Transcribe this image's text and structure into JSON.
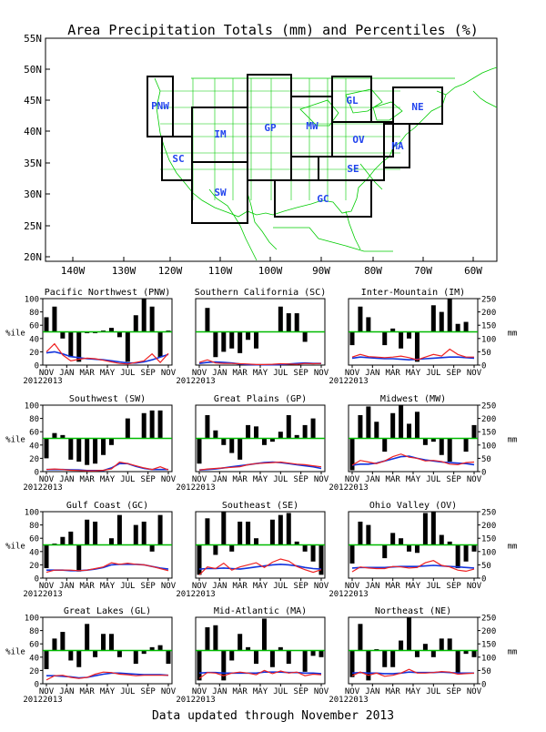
{
  "title": "Area Precipitation Totals (mm) and Percentiles (%)",
  "footer": "Data updated through November 2013",
  "colors": {
    "state_lines": "#00cc00",
    "region_labels": "#2244ee",
    "bars": "#000000",
    "percentile_line": "#ee2222",
    "normal_line": "#1133dd",
    "median_line": "#00bb00"
  },
  "map": {
    "lat_ticks": [
      "55N",
      "50N",
      "45N",
      "40N",
      "35N",
      "30N",
      "25N",
      "20N"
    ],
    "lon_ticks": [
      "140W",
      "130W",
      "120W",
      "110W",
      "100W",
      "90W",
      "80W",
      "70W",
      "60W"
    ],
    "regions": [
      "PNW",
      "SC",
      "IM",
      "SW",
      "GP",
      "MW",
      "GL",
      "OV",
      "SE",
      "GC",
      "NE",
      "MA"
    ]
  },
  "chart_data": [
    {
      "type": "bar+line",
      "title": "Pacific Northwest (PNW)",
      "x": [
        "NOV",
        "JAN",
        "MAR",
        "MAY",
        "JUL",
        "SEP",
        "NOV"
      ],
      "year_labels": [
        "2012",
        "2013"
      ],
      "y_left_label": "%ile",
      "y_left_ticks": [
        0,
        20,
        40,
        60,
        80,
        100
      ],
      "y_right_label": "",
      "y_right_ticks": [],
      "bars_percentile": [
        72,
        88,
        40,
        12,
        5,
        48,
        48,
        52,
        56,
        42,
        5,
        75,
        100,
        88,
        12,
        52
      ],
      "percentile_mm": [
        50,
        80,
        38,
        16,
        22,
        26,
        24,
        18,
        12,
        6,
        4,
        10,
        16,
        42,
        10,
        44
      ],
      "normal_mm": [
        46,
        50,
        42,
        32,
        28,
        24,
        22,
        20,
        16,
        12,
        8,
        8,
        12,
        20,
        30,
        40
      ]
    },
    {
      "type": "bar+line",
      "title": "Southern California (SC)",
      "x": [
        "NOV",
        "JAN",
        "MAR",
        "MAY",
        "JUL",
        "SEP",
        "NOV"
      ],
      "year_labels": [
        "2012",
        "2013"
      ],
      "y_left_label": "",
      "y_left_ticks": [],
      "y_right_label": "",
      "y_right_ticks": [],
      "bars_percentile": [
        50,
        86,
        12,
        20,
        25,
        18,
        38,
        25,
        50,
        50,
        88,
        78,
        78,
        35,
        50,
        50
      ],
      "percentile_mm": [
        10,
        20,
        8,
        6,
        6,
        5,
        4,
        2,
        2,
        3,
        5,
        4,
        3,
        6,
        5,
        6
      ],
      "normal_mm": [
        6,
        10,
        12,
        10,
        8,
        4,
        2,
        1,
        1,
        1,
        2,
        4,
        6,
        8,
        6,
        6
      ]
    },
    {
      "type": "bar+line",
      "title": "Inter-Mountain (IM)",
      "x": [
        "NOV",
        "JAN",
        "MAR",
        "MAY",
        "JUL",
        "SEP",
        "NOV"
      ],
      "year_labels": [
        "2012",
        "2013"
      ],
      "y_left_label": "",
      "y_left_ticks": [],
      "y_right_label": "mm",
      "y_right_ticks": [
        0,
        50,
        100,
        150,
        200,
        250
      ],
      "bars_percentile": [
        30,
        88,
        72,
        50,
        30,
        55,
        25,
        40,
        5,
        50,
        90,
        80,
        100,
        62,
        65,
        50
      ],
      "percentile_mm": [
        30,
        40,
        32,
        30,
        28,
        30,
        34,
        28,
        20,
        30,
        40,
        34,
        60,
        40,
        30,
        30
      ],
      "normal_mm": [
        26,
        30,
        28,
        26,
        24,
        24,
        22,
        20,
        22,
        24,
        26,
        28,
        30,
        30,
        28,
        26
      ]
    },
    {
      "type": "bar+line",
      "title": "Southwest (SW)",
      "x": [
        "NOV",
        "JAN",
        "MAR",
        "MAY",
        "JUL",
        "SEP",
        "NOV"
      ],
      "year_labels": [
        "2012",
        "2013"
      ],
      "y_left_label": "%ile",
      "y_left_ticks": [
        0,
        20,
        40,
        60,
        80,
        100
      ],
      "y_right_label": "",
      "y_right_ticks": [],
      "bars_percentile": [
        20,
        58,
        55,
        18,
        15,
        10,
        12,
        25,
        40,
        50,
        80,
        50,
        88,
        92,
        92,
        50
      ],
      "percentile_mm": [
        8,
        10,
        8,
        5,
        4,
        3,
        3,
        5,
        10,
        36,
        30,
        22,
        14,
        8,
        18,
        6
      ],
      "normal_mm": [
        8,
        8,
        8,
        7,
        6,
        4,
        4,
        4,
        14,
        30,
        30,
        20,
        12,
        8,
        8,
        8
      ]
    },
    {
      "type": "bar+line",
      "title": "Great Plains (GP)",
      "x": [
        "NOV",
        "JAN",
        "MAR",
        "MAY",
        "JUL",
        "SEP",
        "NOV"
      ],
      "year_labels": [
        "2012",
        "2013"
      ],
      "y_left_label": "",
      "y_left_ticks": [],
      "y_right_label": "",
      "y_right_ticks": [],
      "bars_percentile": [
        12,
        85,
        62,
        40,
        28,
        18,
        70,
        68,
        40,
        45,
        60,
        85,
        55,
        70,
        80,
        50
      ],
      "percentile_mm": [
        6,
        10,
        12,
        14,
        16,
        18,
        26,
        30,
        32,
        34,
        36,
        32,
        28,
        26,
        22,
        18
      ],
      "normal_mm": [
        6,
        8,
        10,
        14,
        18,
        22,
        26,
        30,
        34,
        36,
        34,
        30,
        26,
        22,
        18,
        12
      ]
    },
    {
      "type": "bar+line",
      "title": "Midwest (MW)",
      "x": [
        "NOV",
        "JAN",
        "MAR",
        "MAY",
        "JUL",
        "SEP",
        "NOV"
      ],
      "year_labels": [
        "2012",
        "2013"
      ],
      "y_left_label": "",
      "y_left_ticks": [],
      "y_right_label": "mm",
      "y_right_ticks": [
        0,
        50,
        100,
        150,
        200,
        250
      ],
      "bars_percentile": [
        2,
        85,
        98,
        75,
        30,
        88,
        100,
        72,
        90,
        40,
        45,
        25,
        15,
        50,
        30,
        70
      ],
      "percentile_mm": [
        24,
        42,
        36,
        30,
        40,
        56,
        66,
        54,
        50,
        40,
        42,
        38,
        28,
        26,
        34,
        36
      ],
      "normal_mm": [
        24,
        28,
        28,
        32,
        40,
        48,
        56,
        58,
        50,
        44,
        40,
        36,
        34,
        32,
        30,
        26
      ]
    },
    {
      "type": "bar+line",
      "title": "Gulf Coast (GC)",
      "x": [
        "NOV",
        "JAN",
        "MAR",
        "MAY",
        "JUL",
        "SEP",
        "NOV"
      ],
      "year_labels": [
        "2012",
        "2013"
      ],
      "y_left_label": "%ile",
      "y_left_ticks": [
        0,
        20,
        40,
        60,
        80,
        100
      ],
      "y_right_label": "",
      "y_right_ticks": [],
      "bars_percentile": [
        15,
        52,
        62,
        70,
        10,
        88,
        85,
        50,
        60,
        95,
        50,
        80,
        85,
        40,
        95,
        50
      ],
      "percentile_mm": [
        22,
        30,
        30,
        30,
        28,
        30,
        36,
        42,
        58,
        52,
        56,
        52,
        50,
        44,
        36,
        28
      ],
      "normal_mm": [
        30,
        30,
        30,
        28,
        28,
        30,
        34,
        40,
        50,
        52,
        52,
        52,
        50,
        44,
        38,
        34
      ]
    },
    {
      "type": "bar+line",
      "title": "Southeast (SE)",
      "x": [
        "NOV",
        "JAN",
        "MAR",
        "MAY",
        "JUL",
        "SEP",
        "NOV"
      ],
      "year_labels": [
        "2012",
        "2013"
      ],
      "y_left_label": "",
      "y_left_ticks": [],
      "y_right_label": "",
      "y_right_ticks": [],
      "bars_percentile": [
        5,
        90,
        35,
        100,
        40,
        85,
        85,
        60,
        50,
        88,
        95,
        98,
        55,
        40,
        25,
        5
      ],
      "percentile_mm": [
        12,
        42,
        36,
        56,
        30,
        42,
        50,
        58,
        40,
        60,
        72,
        64,
        44,
        32,
        22,
        32
      ],
      "normal_mm": [
        34,
        36,
        36,
        38,
        36,
        34,
        38,
        42,
        46,
        50,
        52,
        50,
        46,
        40,
        36,
        34
      ]
    },
    {
      "type": "bar+line",
      "title": "Ohio Valley (OV)",
      "x": [
        "NOV",
        "JAN",
        "MAR",
        "MAY",
        "JUL",
        "SEP",
        "NOV"
      ],
      "year_labels": [
        "2012",
        "2013"
      ],
      "y_left_label": "",
      "y_left_ticks": [],
      "y_right_label": "mm",
      "y_right_ticks": [
        0,
        50,
        100,
        150,
        200,
        250
      ],
      "bars_percentile": [
        22,
        85,
        80,
        50,
        30,
        68,
        60,
        40,
        38,
        98,
        100,
        65,
        55,
        15,
        25,
        40
      ],
      "percentile_mm": [
        24,
        42,
        38,
        36,
        36,
        44,
        42,
        38,
        40,
        58,
        66,
        48,
        42,
        30,
        26,
        34
      ],
      "normal_mm": [
        38,
        40,
        40,
        40,
        40,
        42,
        44,
        44,
        44,
        46,
        48,
        46,
        44,
        42,
        40,
        38
      ]
    },
    {
      "type": "bar+line",
      "title": "Great Lakes (GL)",
      "x": [
        "NOV",
        "JAN",
        "MAR",
        "MAY",
        "JUL",
        "SEP",
        "NOV"
      ],
      "year_labels": [
        "2012",
        "2013"
      ],
      "y_left_label": "%ile",
      "y_left_ticks": [
        0,
        20,
        40,
        60,
        80,
        100
      ],
      "y_right_label": "",
      "y_right_ticks": [],
      "bars_percentile": [
        22,
        68,
        78,
        35,
        25,
        90,
        40,
        75,
        75,
        40,
        50,
        30,
        45,
        55,
        58,
        30
      ],
      "percentile_mm": [
        14,
        30,
        32,
        24,
        20,
        24,
        36,
        44,
        42,
        36,
        34,
        30,
        32,
        32,
        32,
        32
      ],
      "normal_mm": [
        30,
        30,
        28,
        26,
        22,
        24,
        30,
        36,
        40,
        40,
        38,
        36,
        34,
        34,
        34,
        32
      ]
    },
    {
      "type": "bar+line",
      "title": "Mid-Atlantic (MA)",
      "x": [
        "NOV",
        "JAN",
        "MAR",
        "MAY",
        "JUL",
        "SEP",
        "NOV"
      ],
      "year_labels": [
        "2012",
        "2013"
      ],
      "y_left_label": "",
      "y_left_ticks": [],
      "y_right_label": "",
      "y_right_ticks": [],
      "bars_percentile": [
        5,
        85,
        88,
        5,
        35,
        75,
        55,
        30,
        98,
        25,
        55,
        30,
        50,
        18,
        42,
        40
      ],
      "percentile_mm": [
        20,
        42,
        40,
        30,
        40,
        44,
        40,
        34,
        50,
        38,
        48,
        40,
        44,
        30,
        36,
        34
      ],
      "normal_mm": [
        40,
        42,
        42,
        40,
        40,
        40,
        40,
        40,
        44,
        44,
        44,
        42,
        42,
        40,
        40,
        38
      ]
    },
    {
      "type": "bar+line",
      "title": "Northeast (NE)",
      "x": [
        "NOV",
        "JAN",
        "MAR",
        "MAY",
        "JUL",
        "SEP",
        "NOV"
      ],
      "year_labels": [
        "2012",
        "2013"
      ],
      "y_left_label": "",
      "y_left_ticks": [],
      "y_right_label": "mm",
      "y_right_ticks": [
        0,
        50,
        100,
        150,
        200,
        250
      ],
      "bars_percentile": [
        10,
        90,
        5,
        52,
        25,
        25,
        65,
        100,
        40,
        60,
        40,
        68,
        68,
        15,
        45,
        40
      ],
      "percentile_mm": [
        30,
        44,
        32,
        40,
        28,
        32,
        40,
        54,
        40,
        40,
        42,
        46,
        44,
        36,
        38,
        40
      ],
      "normal_mm": [
        40,
        42,
        40,
        40,
        38,
        38,
        40,
        44,
        42,
        42,
        42,
        44,
        42,
        40,
        40,
        40
      ]
    }
  ]
}
